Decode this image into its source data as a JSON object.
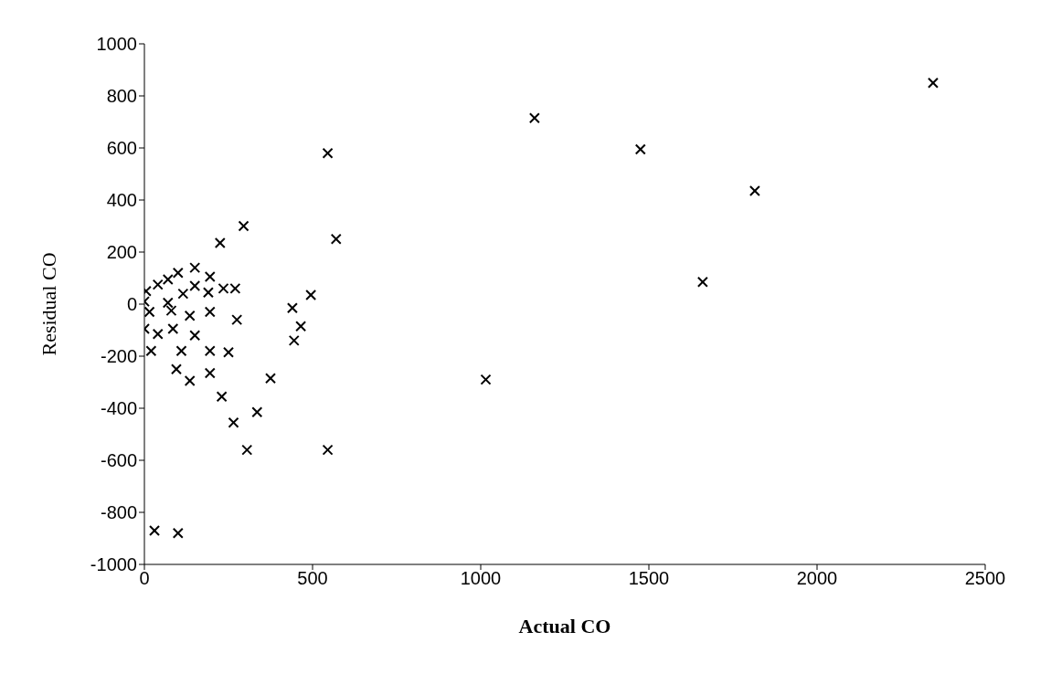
{
  "chart_data": {
    "type": "scatter",
    "xlabel": "Actual CO",
    "ylabel": "Residual CO",
    "x": [
      2345,
      1160,
      1475,
      1815,
      1660,
      1015,
      545,
      570,
      295,
      225,
      150,
      100,
      70,
      195,
      40,
      150,
      190,
      235,
      270,
      5,
      0,
      115,
      70,
      80,
      135,
      195,
      15,
      275,
      440,
      495,
      465,
      445,
      0,
      85,
      40,
      150,
      20,
      110,
      195,
      250,
      95,
      135,
      195,
      375,
      230,
      335,
      265,
      305,
      545,
      30,
      100
    ],
    "values": [
      850,
      715,
      595,
      435,
      85,
      -290,
      580,
      250,
      300,
      235,
      140,
      120,
      95,
      105,
      75,
      70,
      45,
      60,
      60,
      50,
      10,
      40,
      5,
      -25,
      -45,
      -30,
      -30,
      -60,
      -15,
      35,
      -85,
      -140,
      -95,
      -95,
      -115,
      -120,
      -180,
      -180,
      -180,
      -185,
      -250,
      -295,
      -265,
      -285,
      -355,
      -415,
      -455,
      -560,
      -560,
      -870,
      -880
    ],
    "color": "#000000",
    "marker": "cross",
    "xlim": [
      0,
      2500
    ],
    "xticks": [
      0,
      500,
      1000,
      1500,
      2000,
      2500
    ],
    "ylim": [
      -1000,
      1000
    ],
    "yticks": [
      -1000,
      -800,
      -600,
      -400,
      -200,
      0,
      200,
      400,
      600,
      800,
      1000
    ],
    "grid": false,
    "legend": false
  }
}
